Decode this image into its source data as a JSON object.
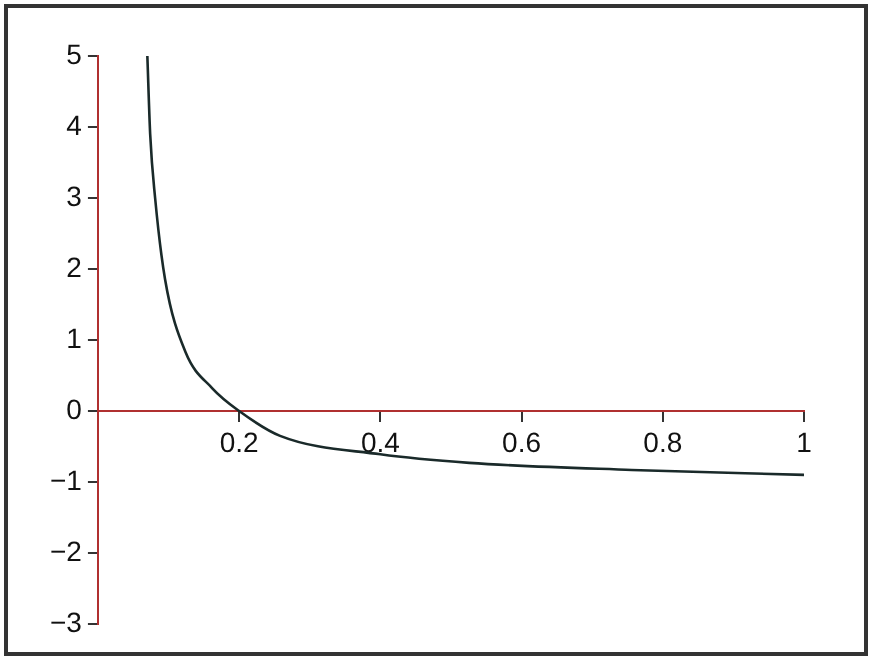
{
  "chart_data": {
    "type": "line",
    "x": [
      0.07,
      0.074,
      0.081,
      0.095,
      0.124,
      0.162,
      0.2,
      0.258,
      0.4,
      0.526,
      0.756,
      1.0
    ],
    "series": [
      {
        "color": "#1a2a2a",
        "values": [
          5,
          3.9,
          3.0,
          1.86,
          0.83,
          0.32,
          0,
          -0.35,
          -0.61,
          -0.73,
          -0.83,
          -0.9
        ]
      }
    ],
    "xlim": [
      0,
      1
    ],
    "xticks": [
      0.2,
      0.4,
      0.6,
      0.8,
      1
    ],
    "ylim": [
      -3,
      5
    ],
    "yticks": [
      -3,
      -2,
      -1,
      0,
      1,
      2,
      3,
      4,
      5
    ],
    "grid": false,
    "legend": false,
    "marker": "none",
    "line_style": "solid"
  }
}
